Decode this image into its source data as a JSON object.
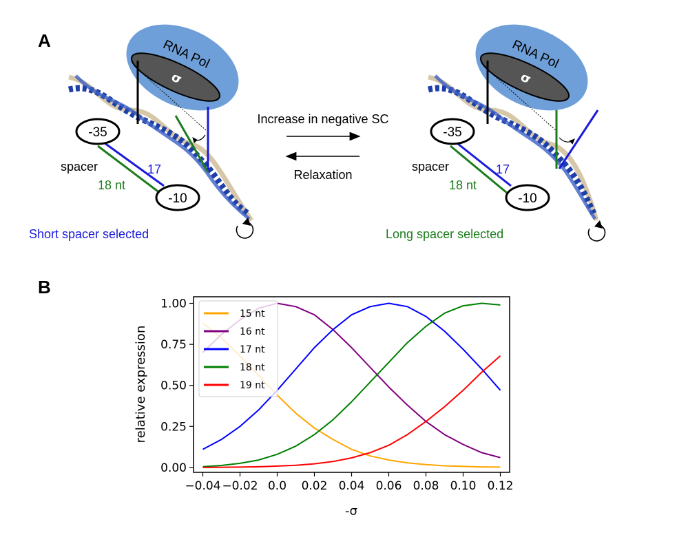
{
  "panel_a": {
    "letter": "A",
    "polymerase_label": "RNA Pol",
    "sigma_label": "σ",
    "box_35": "-35",
    "box_10": "-10",
    "spacer_label": "spacer",
    "short_len": "17",
    "long_len": "18 nt",
    "forward_label": "Increase in negative SC",
    "reverse_label": "Relaxation",
    "left_caption": "Short spacer selected",
    "right_caption": "Long spacer selected",
    "colors": {
      "polymerase": "#6f9fd8",
      "sigma": "#555555",
      "short": "#1a1adb",
      "long": "#1c7c1c",
      "dna": "#1e3fa8"
    }
  },
  "panel_b": {
    "letter": "B"
  },
  "chart_data": {
    "type": "line",
    "xlabel": "-σ",
    "ylabel": "relative expression",
    "xlim": [
      -0.045,
      0.125
    ],
    "ylim": [
      -0.03,
      1.04
    ],
    "xticks": [
      -0.04,
      -0.02,
      0.0,
      0.02,
      0.04,
      0.06,
      0.08,
      0.1,
      0.12
    ],
    "xtick_labels": [
      "−0.04",
      "−0.02",
      "0.0",
      "0.02",
      "0.04",
      "0.06",
      "0.08",
      "0.10",
      "0.12"
    ],
    "yticks": [
      0.0,
      0.25,
      0.5,
      0.75,
      1.0
    ],
    "ytick_labels": [
      "0.00",
      "0.25",
      "0.50",
      "0.75",
      "1.00"
    ],
    "legend_position": "upper-left",
    "x": [
      -0.04,
      -0.03,
      -0.02,
      -0.01,
      0.0,
      0.01,
      0.02,
      0.03,
      0.04,
      0.05,
      0.06,
      0.07,
      0.08,
      0.09,
      0.1,
      0.11,
      0.12
    ],
    "series": [
      {
        "name": "15 nt",
        "color": "#ffa500",
        "values": [
          0.88,
          0.79,
          0.68,
          0.56,
          0.44,
          0.33,
          0.24,
          0.17,
          0.11,
          0.07,
          0.045,
          0.028,
          0.017,
          0.01,
          0.006,
          0.003,
          0.002
        ]
      },
      {
        "name": "16 nt",
        "color": "#800080",
        "values": [
          0.7,
          0.81,
          0.9,
          0.97,
          1.0,
          0.98,
          0.93,
          0.84,
          0.73,
          0.61,
          0.49,
          0.38,
          0.28,
          0.2,
          0.14,
          0.09,
          0.06
        ]
      },
      {
        "name": "17 nt",
        "color": "#0000ff",
        "values": [
          0.11,
          0.17,
          0.25,
          0.35,
          0.47,
          0.6,
          0.73,
          0.84,
          0.93,
          0.98,
          1.0,
          0.98,
          0.92,
          0.83,
          0.72,
          0.6,
          0.47
        ]
      },
      {
        "name": "18 nt",
        "color": "#008000",
        "values": [
          0.005,
          0.012,
          0.025,
          0.045,
          0.08,
          0.13,
          0.2,
          0.29,
          0.4,
          0.52,
          0.64,
          0.76,
          0.86,
          0.94,
          0.985,
          1.0,
          0.99
        ]
      },
      {
        "name": "19 nt",
        "color": "#ff0000",
        "values": [
          0.0,
          0.001,
          0.002,
          0.004,
          0.008,
          0.013,
          0.022,
          0.036,
          0.058,
          0.09,
          0.135,
          0.2,
          0.28,
          0.37,
          0.47,
          0.58,
          0.68
        ]
      }
    ]
  }
}
